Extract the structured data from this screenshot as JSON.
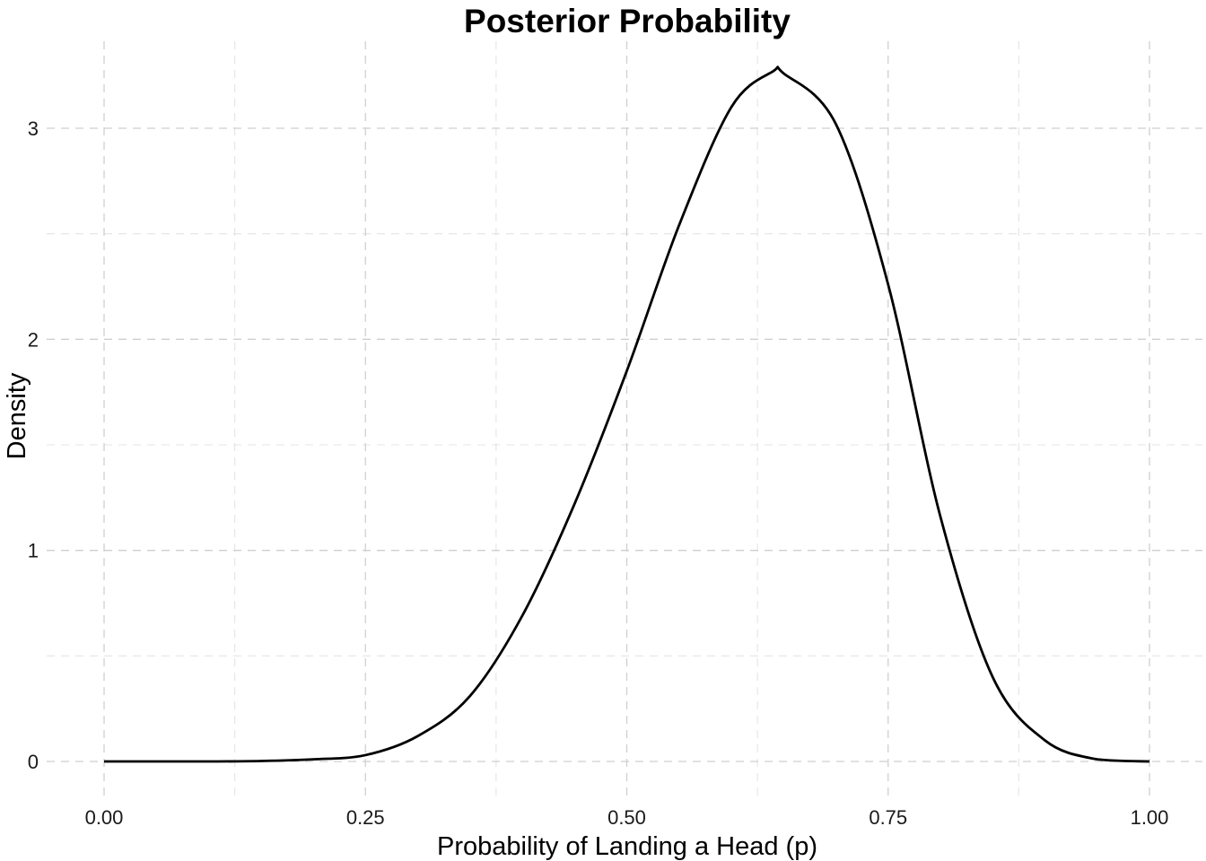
{
  "chart_data": {
    "type": "line",
    "title": "Posterior Probability",
    "xlabel": "Probability of Landing a Head (p)",
    "ylabel": "Density",
    "xlim": [
      0,
      1
    ],
    "ylim": [
      0,
      3.27
    ],
    "x_ticks": [
      0,
      0.25,
      0.5,
      0.75,
      1
    ],
    "x_tick_labels": [
      "0.00",
      "0.25",
      "0.50",
      "0.75",
      "1.00"
    ],
    "x_minor_ticks": [
      0.125,
      0.375,
      0.625,
      0.875
    ],
    "y_ticks": [
      0,
      1,
      2,
      3
    ],
    "y_tick_labels": [
      "0",
      "1",
      "2",
      "3"
    ],
    "y_minor_ticks": [
      0.5,
      1.5,
      2.5
    ],
    "grid": true,
    "legend": "none",
    "line_color": "#000000",
    "series": [
      {
        "x": [
          0.0,
          0.05,
          0.1,
          0.15,
          0.2,
          0.25,
          0.3,
          0.35,
          0.4,
          0.45,
          0.5,
          0.55,
          0.6,
          0.64,
          0.65,
          0.7,
          0.75,
          0.8,
          0.85,
          0.9,
          0.95,
          1.0
        ],
        "y": [
          0.0,
          0.0,
          0.0,
          0.002,
          0.01,
          0.03,
          0.12,
          0.31,
          0.69,
          1.22,
          1.85,
          2.54,
          3.1,
          3.27,
          3.26,
          3.02,
          2.26,
          1.16,
          0.4,
          0.1,
          0.01,
          0.0
        ]
      }
    ]
  }
}
